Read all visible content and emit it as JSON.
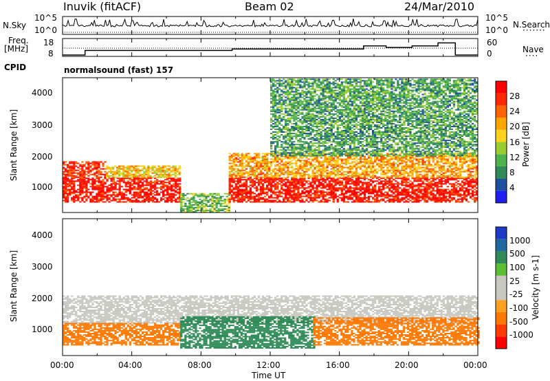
{
  "header": {
    "station": "Inuvik (fitACF)",
    "beam": "Beam 02",
    "date": "24/Mar/2010",
    "cpid_label": "CPID",
    "cpid_value": "normalsound (fast) 157"
  },
  "panels": {
    "nsky": {
      "label": "N.Sky",
      "ticks": [
        "10^5",
        "10^0"
      ],
      "right_label": "N.Search",
      "right_ticks": [
        "10^5",
        "10^0"
      ]
    },
    "freq": {
      "label_line1": "Freq.",
      "label_line2": "[MHz]",
      "ticks": [
        "18",
        "8"
      ],
      "right_label": "Nave",
      "right_ticks": [
        "60",
        "0"
      ]
    },
    "power": {
      "ylabel": "Slant Range [km]",
      "yticks": [
        "4000",
        "3000",
        "2000",
        "1000"
      ]
    },
    "velocity": {
      "ylabel": "Slant Range [km]",
      "yticks": [
        "4000",
        "3000",
        "2000",
        "1000"
      ]
    }
  },
  "xaxis": {
    "title": "Time UT",
    "ticks": [
      "00:00",
      "04:00",
      "08:00",
      "12:00",
      "16:00",
      "20:00",
      "00:00"
    ]
  },
  "colors": {
    "power_scale": [
      "#1e1ef0",
      "#1e50a0",
      "#2e8b57",
      "#4db34d",
      "#9acd32",
      "#ffd21e",
      "#ffa500",
      "#ff6400",
      "#ff2800",
      "#ff0000"
    ],
    "velocity_scale": [
      "#ff0000",
      "#ff3c00",
      "#ff7800",
      "#ffa01e",
      "#c8c8c0",
      "#c8c8c0",
      "#5abe32",
      "#2e8b57",
      "#1e6aa0",
      "#1e3cc8"
    ]
  },
  "chart_data": [
    {
      "type": "line",
      "title": "N.Sky / N.Search",
      "x": [
        "00:00",
        "04:00",
        "08:00",
        "12:00",
        "16:00",
        "20:00",
        "00:00"
      ],
      "ylim_left": [
        "10^0",
        "10^5"
      ],
      "ylim_right": [
        "10^0",
        "10^5"
      ]
    },
    {
      "type": "line",
      "title": "Freq. [MHz] / Nave",
      "x_hours": [
        0,
        1.3,
        1.3,
        9.8,
        9.8,
        17.4,
        17.4,
        18.7,
        18.7,
        20.2,
        20.2,
        21.7,
        21.7,
        22.7,
        22.7,
        24
      ],
      "freq_mhz": [
        8,
        8,
        11,
        11,
        12,
        12,
        14,
        14,
        13,
        13,
        14,
        14,
        16,
        16,
        8,
        8
      ],
      "ylim_left": [
        8,
        18
      ],
      "ylim_right": [
        0,
        60
      ]
    },
    {
      "type": "heatmap",
      "title": "Power [dB]",
      "xlabel": "Time UT",
      "ylabel": "Slant Range [km]",
      "xlim_hours": [
        0,
        24
      ],
      "ylim": [
        180,
        4550
      ],
      "colorbar": {
        "label": "Power [dB]",
        "ticks": [
          4,
          8,
          12,
          16,
          20,
          24,
          28
        ]
      },
      "bands": [
        {
          "t0": 0,
          "t1": 6.8,
          "r0": 500,
          "r1": 1300,
          "value": 26
        },
        {
          "t0": 0,
          "t1": 2.5,
          "r0": 1300,
          "r1": 1800,
          "value": 24
        },
        {
          "t0": 2.5,
          "t1": 6.8,
          "r0": 1300,
          "r1": 1700,
          "value": 16
        },
        {
          "t0": 6.8,
          "t1": 9.6,
          "r0": 180,
          "r1": 800,
          "value": 10
        },
        {
          "t0": 9.6,
          "t1": 24,
          "r0": 500,
          "r1": 1300,
          "value": 26
        },
        {
          "t0": 9.6,
          "t1": 24,
          "r0": 1300,
          "r1": 2100,
          "value": 18
        },
        {
          "t0": 12,
          "t1": 24,
          "r0": 2000,
          "r1": 4500,
          "value": 8
        }
      ]
    },
    {
      "type": "heatmap",
      "title": "Velocity [m s^-1]",
      "xlabel": "Time UT",
      "ylabel": "Slant Range [km]",
      "xlim_hours": [
        0,
        24
      ],
      "ylim": [
        180,
        4550
      ],
      "colorbar": {
        "label": "Velocity [m s-1]",
        "ticks": [
          1000,
          500,
          100,
          25,
          -25,
          -100,
          -500,
          -1000
        ]
      },
      "bands": [
        {
          "t0": 0,
          "t1": 24,
          "r0": 1200,
          "r1": 2100,
          "value": 0
        },
        {
          "t0": 0,
          "t1": 6.8,
          "r0": 500,
          "r1": 1200,
          "value": -150
        },
        {
          "t0": 6.8,
          "t1": 14.5,
          "r0": 400,
          "r1": 1400,
          "value": 300
        },
        {
          "t0": 14.5,
          "t1": 24,
          "r0": 500,
          "r1": 1400,
          "value": -150
        }
      ]
    }
  ]
}
